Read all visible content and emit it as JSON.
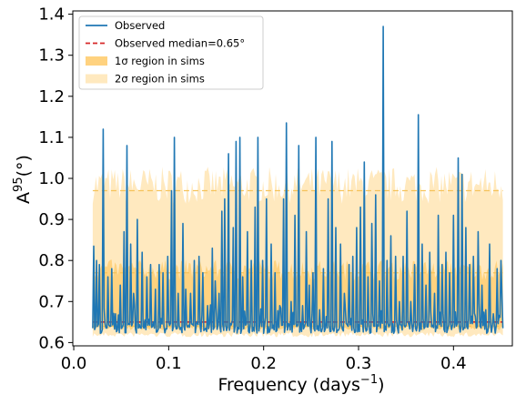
{
  "chart_data": {
    "type": "line",
    "xlabel": "Frequency (days",
    "xlabel_sup": "−1",
    "xlabel_close": ")",
    "ylabel": "A",
    "ylabel_sup": "95",
    "ylabel_unit": "(°)",
    "xlim": [
      -0.001,
      0.462
    ],
    "ylim": [
      0.592,
      1.408
    ],
    "xticks": [
      0.0,
      0.1,
      0.2,
      0.3,
      0.4
    ],
    "xtick_labels": [
      "0.0",
      "0.1",
      "0.2",
      "0.3",
      "0.4"
    ],
    "yticks": [
      0.6,
      0.7,
      0.8,
      0.9,
      1.0,
      1.1,
      1.2,
      1.3,
      1.4
    ],
    "ytick_labels": [
      "0.6",
      "0.7",
      "0.8",
      "0.9",
      "1.0",
      "1.1",
      "1.2",
      "1.3",
      "1.4"
    ],
    "grid": false,
    "legend_position": "top-left",
    "legend": [
      {
        "label": "Observed",
        "kind": "line",
        "color": "#1f77b4"
      },
      {
        "label": "Observed median=0.65°",
        "kind": "dashed",
        "color": "#d62728"
      },
      {
        "label": "1σ region in sims",
        "kind": "patch",
        "color": "#ffd27f"
      },
      {
        "label": "2σ region in sims",
        "kind": "patch",
        "color": "#ffe9bf"
      }
    ],
    "observed_median": 0.65,
    "bands": {
      "x_range": [
        0.02,
        0.452
      ],
      "two_sigma": {
        "lower": 0.625,
        "upper": 0.97
      },
      "one_sigma": {
        "lower": 0.64,
        "upper": 0.77
      },
      "dashed_levels": [
        0.97,
        0.77,
        0.64
      ]
    },
    "series": [
      {
        "name": "Observed",
        "color": "#1f77b4",
        "x_range": [
          0.02,
          0.452
        ],
        "base": 0.635,
        "peaks": [
          [
            0.021,
            0.835
          ],
          [
            0.024,
            0.8
          ],
          [
            0.027,
            0.79
          ],
          [
            0.031,
            1.12
          ],
          [
            0.036,
            0.76
          ],
          [
            0.04,
            0.78
          ],
          [
            0.044,
            0.67
          ],
          [
            0.049,
            0.74
          ],
          [
            0.053,
            0.87
          ],
          [
            0.056,
            1.08
          ],
          [
            0.06,
            0.84
          ],
          [
            0.063,
            0.72
          ],
          [
            0.067,
            0.9
          ],
          [
            0.072,
            0.82
          ],
          [
            0.077,
            0.76
          ],
          [
            0.081,
            0.79
          ],
          [
            0.086,
            0.73
          ],
          [
            0.09,
            0.79
          ],
          [
            0.094,
            0.77
          ],
          [
            0.099,
            0.81
          ],
          [
            0.103,
            0.97
          ],
          [
            0.106,
            1.1
          ],
          [
            0.11,
            0.72
          ],
          [
            0.115,
            0.89
          ],
          [
            0.118,
            0.73
          ],
          [
            0.123,
            0.72
          ],
          [
            0.127,
            0.8
          ],
          [
            0.132,
            0.81
          ],
          [
            0.136,
            0.77
          ],
          [
            0.141,
            0.69
          ],
          [
            0.146,
            0.83
          ],
          [
            0.149,
            0.75
          ],
          [
            0.153,
            0.72
          ],
          [
            0.156,
            0.92
          ],
          [
            0.159,
            0.95
          ],
          [
            0.163,
            1.06
          ],
          [
            0.168,
            0.88
          ],
          [
            0.171,
            1.09
          ],
          [
            0.175,
            1.1
          ],
          [
            0.178,
            0.76
          ],
          [
            0.183,
            0.87
          ],
          [
            0.187,
            0.8
          ],
          [
            0.191,
            0.93
          ],
          [
            0.194,
            1.1
          ],
          [
            0.199,
            0.8
          ],
          [
            0.203,
            0.95
          ],
          [
            0.208,
            0.84
          ],
          [
            0.212,
            0.77
          ],
          [
            0.217,
            0.69
          ],
          [
            0.221,
            0.95
          ],
          [
            0.224,
            1.135
          ],
          [
            0.229,
            0.7
          ],
          [
            0.233,
            0.91
          ],
          [
            0.237,
            1.08
          ],
          [
            0.241,
            0.69
          ],
          [
            0.245,
            0.87
          ],
          [
            0.248,
            0.74
          ],
          [
            0.252,
            0.77
          ],
          [
            0.255,
            1.1
          ],
          [
            0.259,
            0.68
          ],
          [
            0.263,
            0.78
          ],
          [
            0.268,
            0.95
          ],
          [
            0.272,
            1.09
          ],
          [
            0.276,
            0.88
          ],
          [
            0.281,
            0.84
          ],
          [
            0.285,
            0.72
          ],
          [
            0.29,
            0.79
          ],
          [
            0.294,
            0.81
          ],
          [
            0.298,
            0.88
          ],
          [
            0.302,
            0.93
          ],
          [
            0.306,
            1.04
          ],
          [
            0.31,
            0.76
          ],
          [
            0.314,
            0.89
          ],
          [
            0.318,
            0.96
          ],
          [
            0.322,
            0.75
          ],
          [
            0.326,
            1.37
          ],
          [
            0.33,
            0.8
          ],
          [
            0.334,
            0.86
          ],
          [
            0.339,
            0.81
          ],
          [
            0.343,
            0.7
          ],
          [
            0.347,
            0.81
          ],
          [
            0.351,
            0.92
          ],
          [
            0.355,
            0.7
          ],
          [
            0.359,
            0.79
          ],
          [
            0.363,
            1.155
          ],
          [
            0.367,
            0.84
          ],
          [
            0.371,
            0.74
          ],
          [
            0.375,
            0.82
          ],
          [
            0.38,
            0.72
          ],
          [
            0.384,
            0.91
          ],
          [
            0.388,
            0.79
          ],
          [
            0.392,
            0.82
          ],
          [
            0.396,
            0.77
          ],
          [
            0.4,
            0.91
          ],
          [
            0.405,
            1.05
          ],
          [
            0.409,
            1.01
          ],
          [
            0.413,
            0.88
          ],
          [
            0.417,
            0.79
          ],
          [
            0.421,
            0.81
          ],
          [
            0.426,
            0.87
          ],
          [
            0.43,
            0.74
          ],
          [
            0.434,
            0.68
          ],
          [
            0.438,
            0.84
          ],
          [
            0.442,
            0.67
          ],
          [
            0.446,
            0.78
          ],
          [
            0.45,
            0.8
          ]
        ]
      }
    ]
  }
}
